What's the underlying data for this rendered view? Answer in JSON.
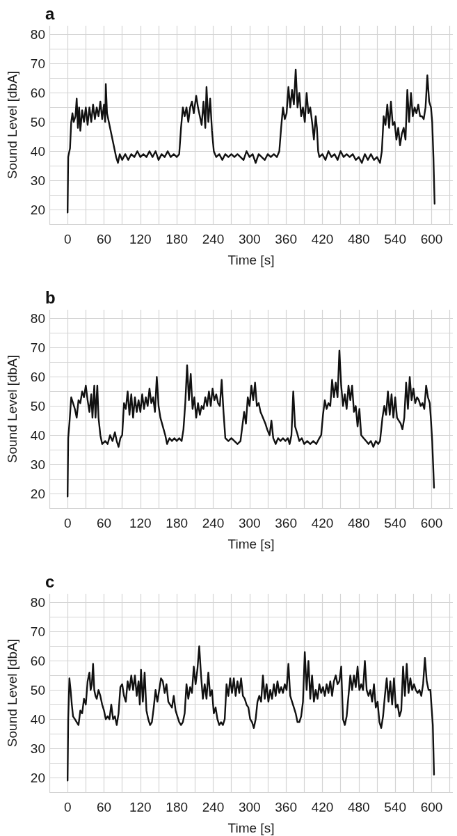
{
  "chart_data": [
    {
      "type": "line",
      "title": "a",
      "xlabel": "Time [s]",
      "ylabel": "Sound Level [dbA]",
      "xlim": [
        -30,
        635
      ],
      "ylim": [
        15,
        83
      ],
      "xticks": [
        {
          "value": -30,
          "label": null
        },
        0,
        {
          "value": 30,
          "label": null
        },
        60,
        {
          "value": 90,
          "label": null
        },
        120,
        {
          "value": 150,
          "label": null
        },
        180,
        {
          "value": 210,
          "label": null
        },
        240,
        {
          "value": 270,
          "label": null
        },
        300,
        {
          "value": 330,
          "label": null
        },
        360,
        {
          "value": 390,
          "label": null
        },
        420,
        {
          "value": 450,
          "label": null
        },
        480,
        {
          "value": 510,
          "label": null
        },
        540,
        {
          "value": 570,
          "label": null
        },
        600,
        {
          "value": 630,
          "label": null
        }
      ],
      "yticks": [
        {
          "value": 15,
          "label": null
        },
        20,
        {
          "value": 25,
          "label": null
        },
        30,
        {
          "value": 35,
          "label": null
        },
        40,
        {
          "value": 45,
          "label": null
        },
        50,
        {
          "value": 55,
          "label": null
        },
        60,
        {
          "value": 65,
          "label": null
        },
        70,
        {
          "value": 75,
          "label": null
        },
        80
      ],
      "grid": true,
      "marker": "none",
      "line_style": "solid",
      "color": "#111111",
      "x": [
        0,
        1,
        4,
        6,
        8,
        10,
        13,
        15,
        17,
        19,
        21,
        24,
        27,
        30,
        33,
        36,
        39,
        42,
        45,
        48,
        51,
        54,
        57,
        60,
        62,
        63,
        65,
        68,
        72,
        76,
        80,
        83,
        86,
        90,
        95,
        100,
        105,
        110,
        115,
        120,
        125,
        130,
        135,
        140,
        145,
        150,
        155,
        160,
        165,
        170,
        175,
        180,
        184,
        187,
        190,
        193,
        196,
        199,
        202,
        205,
        208,
        212,
        215,
        218,
        221,
        224,
        227,
        229,
        232,
        235,
        238,
        241,
        245,
        250,
        255,
        260,
        265,
        270,
        275,
        280,
        285,
        290,
        295,
        300,
        305,
        310,
        315,
        320,
        325,
        330,
        335,
        340,
        345,
        349,
        352,
        355,
        358,
        361,
        364,
        367,
        370,
        373,
        376,
        379,
        382,
        385,
        388,
        391,
        394,
        397,
        400,
        403,
        406,
        409,
        411,
        413,
        415,
        420,
        425,
        430,
        435,
        440,
        445,
        450,
        455,
        460,
        465,
        470,
        475,
        480,
        485,
        490,
        495,
        500,
        505,
        510,
        515,
        518,
        521,
        524,
        527,
        530,
        533,
        536,
        539,
        542,
        545,
        548,
        551,
        554,
        557,
        560,
        563,
        566,
        569,
        572,
        575,
        578,
        581,
        584,
        587,
        590,
        593,
        596,
        599,
        601,
        603,
        605
      ],
      "values": [
        19,
        38,
        41,
        50,
        53,
        50,
        52,
        58,
        48,
        55,
        47,
        54,
        50,
        55,
        49,
        55,
        50,
        56,
        51,
        55,
        52,
        57,
        51,
        56,
        50,
        63,
        53,
        50,
        46,
        42,
        38,
        36,
        39,
        37,
        39,
        37,
        39,
        38,
        40,
        38,
        39,
        38,
        40,
        38,
        40,
        37,
        39,
        38,
        40,
        38,
        39,
        38,
        39,
        48,
        55,
        52,
        55,
        50,
        55,
        57,
        53,
        59,
        55,
        52,
        49,
        57,
        48,
        62,
        50,
        58,
        47,
        40,
        38,
        39,
        37,
        39,
        38,
        39,
        38,
        39,
        38,
        37,
        40,
        38,
        39,
        36,
        39,
        38,
        37,
        39,
        38,
        39,
        38,
        40,
        48,
        55,
        51,
        53,
        62,
        55,
        61,
        56,
        68,
        55,
        60,
        52,
        55,
        50,
        60,
        53,
        55,
        50,
        44,
        52,
        48,
        40,
        38,
        39,
        37,
        40,
        38,
        39,
        37,
        40,
        38,
        39,
        38,
        39,
        37,
        38,
        36,
        39,
        37,
        39,
        37,
        38,
        36,
        40,
        52,
        49,
        56,
        48,
        57,
        49,
        50,
        44,
        48,
        42,
        46,
        48,
        44,
        61,
        50,
        60,
        52,
        55,
        53,
        56,
        52,
        52,
        51,
        55,
        66,
        57,
        55,
        50,
        38,
        22
      ]
    },
    {
      "type": "line",
      "title": "b",
      "xlabel": "Time [s]",
      "ylabel": "Sound Level [dbA]",
      "xlim": [
        -30,
        635
      ],
      "ylim": [
        15,
        83
      ],
      "xticks": [
        {
          "value": -30,
          "label": null
        },
        0,
        {
          "value": 30,
          "label": null
        },
        60,
        {
          "value": 90,
          "label": null
        },
        120,
        {
          "value": 150,
          "label": null
        },
        180,
        {
          "value": 210,
          "label": null
        },
        240,
        {
          "value": 270,
          "label": null
        },
        300,
        {
          "value": 330,
          "label": null
        },
        360,
        {
          "value": 390,
          "label": null
        },
        420,
        {
          "value": 450,
          "label": null
        },
        480,
        {
          "value": 510,
          "label": null
        },
        540,
        {
          "value": 570,
          "label": null
        },
        600,
        {
          "value": 630,
          "label": null
        }
      ],
      "yticks": [
        {
          "value": 15,
          "label": null
        },
        20,
        {
          "value": 25,
          "label": null
        },
        30,
        {
          "value": 35,
          "label": null
        },
        40,
        {
          "value": 45,
          "label": null
        },
        50,
        {
          "value": 55,
          "label": null
        },
        60,
        {
          "value": 65,
          "label": null
        },
        70,
        {
          "value": 75,
          "label": null
        },
        80
      ],
      "grid": true,
      "marker": "none",
      "line_style": "solid",
      "color": "#111111",
      "x": [
        0,
        1,
        3,
        6,
        9,
        12,
        15,
        18,
        21,
        24,
        27,
        30,
        33,
        36,
        39,
        41,
        44,
        46,
        49,
        51,
        54,
        57,
        62,
        66,
        70,
        74,
        78,
        81,
        84,
        87,
        90,
        93,
        96,
        99,
        102,
        105,
        108,
        111,
        114,
        117,
        120,
        123,
        126,
        129,
        132,
        135,
        138,
        141,
        144,
        147,
        150,
        153,
        157,
        161,
        164,
        168,
        172,
        176,
        180,
        184,
        188,
        191,
        194,
        197,
        200,
        203,
        206,
        209,
        212,
        215,
        218,
        221,
        224,
        227,
        230,
        233,
        236,
        239,
        242,
        245,
        248,
        251,
        254,
        257,
        260,
        265,
        270,
        275,
        280,
        285,
        288,
        291,
        294,
        297,
        300,
        303,
        306,
        309,
        312,
        315,
        318,
        322,
        326,
        329,
        333,
        336,
        339,
        343,
        347,
        351,
        355,
        359,
        363,
        366,
        369,
        372,
        375,
        378,
        382,
        386,
        390,
        395,
        400,
        405,
        410,
        415,
        418,
        421,
        424,
        427,
        430,
        433,
        436,
        439,
        442,
        445,
        448,
        451,
        454,
        457,
        460,
        463,
        466,
        469,
        472,
        475,
        478,
        481,
        484,
        488,
        492,
        496,
        500,
        504,
        508,
        512,
        515,
        519,
        522,
        525,
        528,
        531,
        534,
        537,
        540,
        543,
        546,
        549,
        552,
        555,
        558,
        561,
        564,
        567,
        570,
        573,
        576,
        579,
        582,
        585,
        588,
        591,
        594,
        597,
        599,
        601,
        604
      ],
      "values": [
        19,
        39,
        44,
        53,
        51,
        49,
        46,
        52,
        51,
        55,
        53,
        57,
        52,
        48,
        54,
        46,
        57,
        46,
        57,
        46,
        40,
        37,
        38,
        37,
        40,
        38,
        41,
        38,
        36,
        39,
        40,
        51,
        49,
        55,
        47,
        54,
        46,
        53,
        48,
        52,
        48,
        54,
        49,
        53,
        50,
        56,
        51,
        53,
        48,
        60,
        50,
        46,
        43,
        40,
        37,
        39,
        38,
        39,
        38,
        39,
        38,
        42,
        51,
        64,
        52,
        61,
        49,
        53,
        46,
        51,
        47,
        50,
        49,
        53,
        50,
        55,
        50,
        56,
        52,
        54,
        51,
        50,
        59,
        48,
        39,
        38,
        39,
        38,
        37,
        38,
        43,
        48,
        44,
        53,
        50,
        57,
        52,
        58,
        50,
        51,
        48,
        46,
        44,
        42,
        40,
        45,
        39,
        37,
        39,
        38,
        39,
        38,
        39,
        37,
        40,
        55,
        43,
        41,
        38,
        39,
        37,
        38,
        37,
        38,
        37,
        39,
        40,
        47,
        52,
        49,
        51,
        50,
        59,
        53,
        58,
        53,
        69,
        57,
        50,
        54,
        49,
        57,
        52,
        57,
        48,
        50,
        43,
        49,
        40,
        39,
        38,
        37,
        38,
        36,
        38,
        37,
        38,
        46,
        50,
        47,
        55,
        47,
        54,
        46,
        53,
        46,
        45,
        44,
        42,
        46,
        58,
        49,
        60,
        52,
        56,
        51,
        53,
        52,
        50,
        51,
        49,
        57,
        53,
        51,
        45,
        38,
        22
      ]
    },
    {
      "type": "line",
      "title": "c",
      "xlabel": "Time [s]",
      "ylabel": "Sound Level [dbA]",
      "xlim": [
        -30,
        635
      ],
      "ylim": [
        15,
        83
      ],
      "xticks": [
        {
          "value": -30,
          "label": null
        },
        0,
        {
          "value": 30,
          "label": null
        },
        60,
        {
          "value": 90,
          "label": null
        },
        120,
        {
          "value": 150,
          "label": null
        },
        180,
        {
          "value": 210,
          "label": null
        },
        240,
        {
          "value": 270,
          "label": null
        },
        300,
        {
          "value": 330,
          "label": null
        },
        360,
        {
          "value": 390,
          "label": null
        },
        420,
        {
          "value": 450,
          "label": null
        },
        480,
        {
          "value": 510,
          "label": null
        },
        540,
        {
          "value": 570,
          "label": null
        },
        600,
        {
          "value": 630,
          "label": null
        }
      ],
      "yticks": [
        {
          "value": 15,
          "label": null
        },
        20,
        {
          "value": 25,
          "label": null
        },
        30,
        {
          "value": 35,
          "label": null
        },
        40,
        {
          "value": 45,
          "label": null
        },
        50,
        {
          "value": 55,
          "label": null
        },
        60,
        {
          "value": 65,
          "label": null
        },
        70,
        {
          "value": 75,
          "label": null
        },
        80
      ],
      "grid": true,
      "marker": "none",
      "line_style": "solid",
      "color": "#111111",
      "x": [
        0,
        1,
        3,
        5,
        7,
        9,
        12,
        15,
        18,
        21,
        24,
        27,
        30,
        33,
        36,
        38,
        40,
        42,
        44,
        46,
        48,
        51,
        54,
        57,
        60,
        63,
        66,
        69,
        72,
        75,
        78,
        81,
        84,
        87,
        90,
        93,
        96,
        99,
        102,
        105,
        108,
        111,
        114,
        117,
        119,
        121,
        124,
        127,
        130,
        133,
        136,
        139,
        142,
        145,
        148,
        151,
        154,
        157,
        160,
        163,
        166,
        169,
        172,
        175,
        178,
        181,
        184,
        187,
        190,
        193,
        196,
        199,
        202,
        205,
        208,
        211,
        214,
        217,
        220,
        223,
        226,
        229,
        232,
        235,
        238,
        241,
        244,
        247,
        250,
        253,
        256,
        259,
        262,
        265,
        268,
        271,
        274,
        277,
        280,
        283,
        286,
        289,
        292,
        295,
        298,
        301,
        304,
        307,
        310,
        313,
        316,
        319,
        322,
        325,
        328,
        331,
        334,
        337,
        340,
        343,
        346,
        349,
        352,
        355,
        358,
        361,
        364,
        367,
        370,
        373,
        376,
        379,
        382,
        385,
        388,
        391,
        394,
        397,
        400,
        403,
        406,
        409,
        412,
        415,
        418,
        421,
        424,
        427,
        430,
        433,
        436,
        439,
        442,
        445,
        448,
        451,
        454,
        457,
        460,
        463,
        466,
        469,
        472,
        475,
        478,
        481,
        484,
        487,
        490,
        493,
        496,
        499,
        502,
        505,
        508,
        511,
        514,
        517,
        520,
        523,
        526,
        529,
        532,
        535,
        538,
        541,
        544,
        547,
        550,
        553,
        556,
        559,
        562,
        565,
        568,
        571,
        574,
        577,
        580,
        583,
        586,
        589,
        592,
        595,
        598,
        600,
        602,
        604
      ],
      "values": [
        19,
        40,
        54,
        50,
        45,
        41,
        40,
        39,
        38,
        43,
        42,
        47,
        45,
        53,
        56,
        50,
        52,
        59,
        50,
        48,
        47,
        50,
        48,
        45,
        43,
        40,
        41,
        40,
        45,
        40,
        41,
        38,
        42,
        51,
        52,
        48,
        46,
        53,
        50,
        55,
        50,
        55,
        48,
        53,
        45,
        57,
        46,
        56,
        43,
        40,
        38,
        39,
        44,
        50,
        46,
        50,
        54,
        53,
        49,
        52,
        46,
        45,
        44,
        48,
        43,
        41,
        39,
        38,
        39,
        42,
        52,
        47,
        51,
        49,
        58,
        52,
        57,
        65,
        55,
        47,
        52,
        47,
        56,
        48,
        50,
        42,
        44,
        40,
        38,
        39,
        38,
        40,
        52,
        48,
        54,
        49,
        54,
        48,
        53,
        49,
        54,
        48,
        47,
        45,
        44,
        40,
        39,
        37,
        40,
        46,
        48,
        46,
        55,
        47,
        52,
        46,
        50,
        47,
        52,
        48,
        53,
        49,
        51,
        49,
        52,
        50,
        59,
        48,
        46,
        44,
        42,
        39,
        39,
        41,
        46,
        63,
        50,
        60,
        47,
        55,
        46,
        50,
        47,
        52,
        49,
        51,
        48,
        52,
        49,
        53,
        48,
        53,
        55,
        52,
        53,
        58,
        40,
        38,
        41,
        48,
        55,
        50,
        55,
        51,
        58,
        50,
        52,
        50,
        60,
        50,
        48,
        50,
        46,
        52,
        44,
        46,
        39,
        37,
        41,
        48,
        54,
        46,
        53,
        45,
        54,
        44,
        45,
        41,
        43,
        58,
        48,
        59,
        49,
        54,
        50,
        52,
        50,
        49,
        50,
        48,
        52,
        61,
        53,
        50,
        50,
        44,
        38,
        21
      ]
    }
  ]
}
